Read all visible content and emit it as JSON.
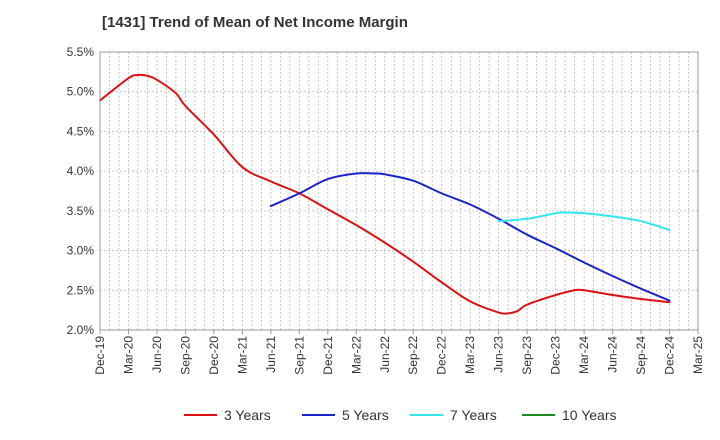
{
  "chart_data": {
    "type": "line",
    "title": "[1431]  Trend of Mean of Net Income Margin",
    "xlabel": "",
    "ylabel": "",
    "ylim": [
      2.0,
      5.5
    ],
    "y_ticks": [
      2.0,
      2.5,
      3.0,
      3.5,
      4.0,
      4.5,
      5.0,
      5.5
    ],
    "y_tick_labels": [
      "2.0%",
      "2.5%",
      "3.0%",
      "3.5%",
      "4.0%",
      "4.5%",
      "5.0%",
      "5.5%"
    ],
    "x_tick_labels": [
      "Dec-19",
      "Mar-20",
      "Jun-20",
      "Sep-20",
      "Dec-20",
      "Mar-21",
      "Jun-21",
      "Sep-21",
      "Dec-21",
      "Mar-22",
      "Jun-22",
      "Sep-22",
      "Dec-22",
      "Mar-23",
      "Jun-23",
      "Sep-23",
      "Dec-23",
      "Mar-24",
      "Jun-24",
      "Sep-24",
      "Dec-24",
      "Mar-25"
    ],
    "grid": true,
    "legend_position": "bottom",
    "series": [
      {
        "name": "3 Years",
        "color": "#dd1111",
        "points": [
          [
            "Dec-19",
            4.89
          ],
          [
            "Mar-20",
            5.17
          ],
          [
            "Apr-20",
            5.21
          ],
          [
            "May-20",
            5.2
          ],
          [
            "Jun-20",
            5.15
          ],
          [
            "Aug-20",
            4.98
          ],
          [
            "Sep-20",
            4.82
          ],
          [
            "Dec-20",
            4.46
          ],
          [
            "Mar-21",
            4.05
          ],
          [
            "Jun-21",
            3.87
          ],
          [
            "Sep-21",
            3.72
          ],
          [
            "Dec-21",
            3.52
          ],
          [
            "Mar-22",
            3.32
          ],
          [
            "Jun-22",
            3.1
          ],
          [
            "Sep-22",
            2.86
          ],
          [
            "Dec-22",
            2.6
          ],
          [
            "Mar-23",
            2.36
          ],
          [
            "Jun-23",
            2.22
          ],
          [
            "Jul-23",
            2.21
          ],
          [
            "Aug-23",
            2.24
          ],
          [
            "Sep-23",
            2.32
          ],
          [
            "Dec-23",
            2.44
          ],
          [
            "Feb-24",
            2.5
          ],
          [
            "Mar-24",
            2.5
          ],
          [
            "Jun-24",
            2.44
          ],
          [
            "Sep-24",
            2.39
          ],
          [
            "Dec-24",
            2.35
          ]
        ]
      },
      {
        "name": "5 Years",
        "color": "#1c24c8",
        "points": [
          [
            "Jun-21",
            3.56
          ],
          [
            "Sep-21",
            3.72
          ],
          [
            "Dec-21",
            3.9
          ],
          [
            "Mar-22",
            3.97
          ],
          [
            "May-22",
            3.97
          ],
          [
            "Jun-22",
            3.96
          ],
          [
            "Sep-22",
            3.88
          ],
          [
            "Dec-22",
            3.72
          ],
          [
            "Mar-23",
            3.58
          ],
          [
            "Jun-23",
            3.4
          ],
          [
            "Sep-23",
            3.2
          ],
          [
            "Dec-23",
            3.03
          ],
          [
            "Mar-24",
            2.85
          ],
          [
            "Jun-24",
            2.68
          ],
          [
            "Sep-24",
            2.52
          ],
          [
            "Dec-24",
            2.37
          ]
        ]
      },
      {
        "name": "7 Years",
        "color": "#33e6ee",
        "points": [
          [
            "Jun-23",
            3.37
          ],
          [
            "Sep-23",
            3.4
          ],
          [
            "Dec-23",
            3.47
          ],
          [
            "Jan-24",
            3.48
          ],
          [
            "Mar-24",
            3.47
          ],
          [
            "Jun-24",
            3.43
          ],
          [
            "Sep-24",
            3.37
          ],
          [
            "Dec-24",
            3.26
          ]
        ]
      },
      {
        "name": "10 Years",
        "color": "#1f8a1f",
        "points": []
      }
    ]
  }
}
